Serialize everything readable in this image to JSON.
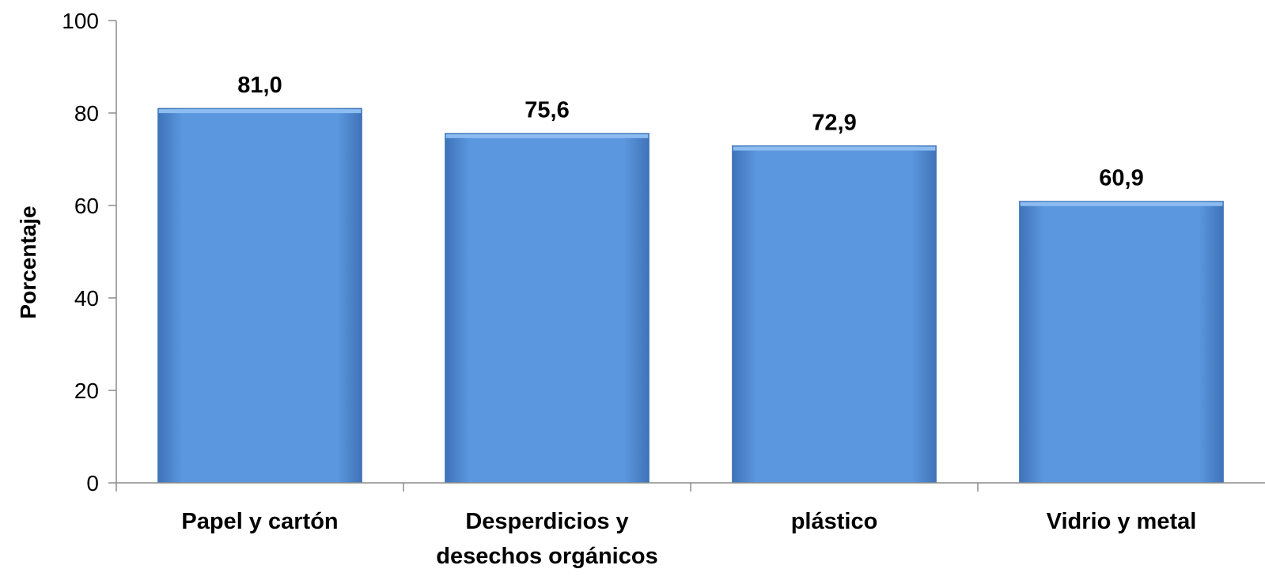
{
  "chart_data": {
    "type": "bar",
    "categories": [
      [
        "Papel y cartón"
      ],
      [
        "Desperdicios y",
        "desechos orgánicos"
      ],
      [
        "plástico"
      ],
      [
        "Vidrio y metal"
      ]
    ],
    "values": [
      81.0,
      75.6,
      72.9,
      60.9
    ],
    "data_labels": [
      "81,0",
      "75,6",
      "72,9",
      "60,9"
    ],
    "title": "",
    "xlabel": "",
    "ylabel": "Porcentaje",
    "ylim": [
      0,
      100
    ],
    "yticks": [
      0,
      20,
      40,
      60,
      80,
      100
    ],
    "grid": false,
    "legend": "none",
    "bar_color": "#5b97de",
    "bar_color_light": "#8dbcf0",
    "bar_color_dark": "#3f73b8",
    "axis_color": "#8c8c8c"
  }
}
